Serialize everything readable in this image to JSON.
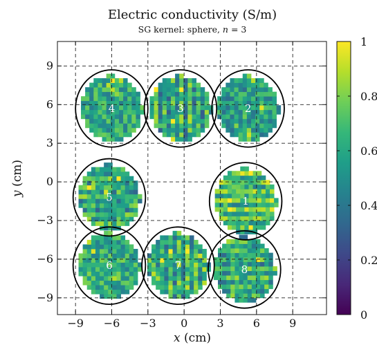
{
  "chart_data": {
    "type": "heatmap",
    "title": "Electric conductivity (S/m)",
    "subtitle_prefix": "SG kernel: sphere, ",
    "subtitle_var": "n",
    "subtitle_suffix": " = 3",
    "xlabel_var": "x",
    "xlabel_unit": " (cm)",
    "ylabel_var": "y",
    "ylabel_unit": " (cm)",
    "xlim": [
      -10.5,
      11.8
    ],
    "ylim": [
      -10.3,
      10.9
    ],
    "xticks": [
      -9,
      -6,
      -3,
      0,
      3,
      6,
      9
    ],
    "xtick_labels": [
      "−9",
      "−6",
      "−3",
      "0",
      "3",
      "6",
      "9"
    ],
    "yticks": [
      -9,
      -6,
      -3,
      0,
      3,
      6,
      9
    ],
    "ytick_labels": [
      "−9",
      "−6",
      "−3",
      "0",
      "3",
      "6",
      "9"
    ],
    "grid": "dashed",
    "colorbar": {
      "min": 0,
      "max": 1,
      "ticks": [
        0,
        0.2,
        0.4,
        0.6,
        0.8,
        1
      ],
      "tick_labels": [
        "0",
        "0.2",
        "0.4",
        "0.6",
        "0.8",
        "1"
      ],
      "colormap": "viridis",
      "colors": [
        "#440154",
        "#482878",
        "#3e4989",
        "#31688e",
        "#26828e",
        "#1f9e89",
        "#35b779",
        "#6ece58",
        "#b5de2b",
        "#fde725"
      ]
    },
    "regions": [
      {
        "label": "1",
        "cx": 5.1,
        "cy": -1.5,
        "r": 3.0,
        "mean": 0.68,
        "stripes": "horizontal"
      },
      {
        "label": "2",
        "cx": 5.3,
        "cy": 5.7,
        "r": 3.0,
        "mean": 0.55,
        "stripes": "none"
      },
      {
        "label": "3",
        "cx": -0.3,
        "cy": 5.7,
        "r": 3.0,
        "mean": 0.58,
        "stripes": "vertical"
      },
      {
        "label": "4",
        "cx": -6.0,
        "cy": 5.7,
        "r": 3.0,
        "mean": 0.6,
        "stripes": "none"
      },
      {
        "label": "5",
        "cx": -6.2,
        "cy": -1.2,
        "r": 3.0,
        "mean": 0.58,
        "stripes": "horizontal"
      },
      {
        "label": "6",
        "cx": -6.2,
        "cy": -6.5,
        "r": 3.0,
        "mean": 0.62,
        "stripes": "none"
      },
      {
        "label": "7",
        "cx": -0.5,
        "cy": -6.5,
        "r": 3.0,
        "mean": 0.6,
        "stripes": "vertical"
      },
      {
        "label": "8",
        "cx": 5.0,
        "cy": -6.8,
        "r": 3.0,
        "mean": 0.58,
        "stripes": "horizontal"
      }
    ]
  }
}
